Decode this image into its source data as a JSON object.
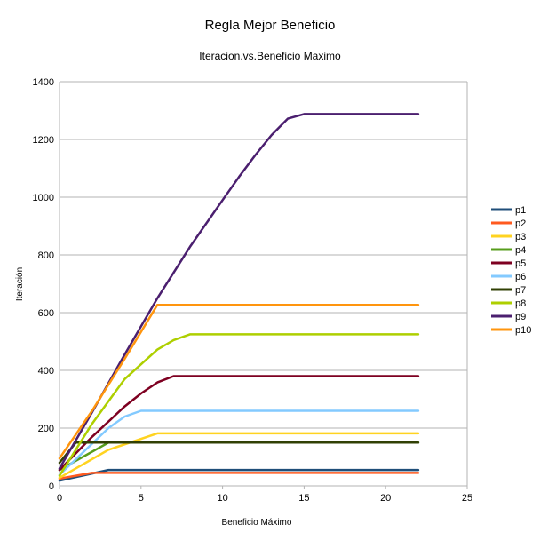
{
  "chart_data": {
    "type": "line",
    "title": "Regla Mejor Beneficio",
    "subtitle": "Iteracion.vs.Beneficio Maximo",
    "xlabel": "Beneficio Máximo",
    "ylabel": "Iteración",
    "xlim": [
      0,
      25
    ],
    "ylim": [
      0,
      1400
    ],
    "xticks": [
      "0",
      "5",
      "10",
      "15",
      "20",
      "25"
    ],
    "yticks": [
      "0",
      "200",
      "400",
      "600",
      "800",
      "1000",
      "1200",
      "1400"
    ],
    "grid": "horizontal",
    "legend": "right",
    "series": [
      {
        "name": "p1",
        "color": "#1f4e79",
        "x": [
          0,
          3,
          22
        ],
        "y": [
          18,
          55,
          55
        ]
      },
      {
        "name": "p2",
        "color": "#ff5a1f",
        "x": [
          0,
          2,
          22
        ],
        "y": [
          25,
          45,
          45
        ]
      },
      {
        "name": "p3",
        "color": "#ffd320",
        "x": [
          0,
          3,
          6,
          22
        ],
        "y": [
          28,
          125,
          182,
          182
        ]
      },
      {
        "name": "p4",
        "color": "#579d1c",
        "x": [
          0,
          3,
          22
        ],
        "y": [
          55,
          150,
          150
        ]
      },
      {
        "name": "p5",
        "color": "#7e0021",
        "x": [
          0,
          2,
          4,
          5,
          6,
          7,
          22
        ],
        "y": [
          55,
          170,
          275,
          320,
          358,
          380,
          380
        ]
      },
      {
        "name": "p6",
        "color": "#83caff",
        "x": [
          0,
          3,
          4,
          5,
          22
        ],
        "y": [
          38,
          200,
          240,
          260,
          260
        ]
      },
      {
        "name": "p7",
        "color": "#314004",
        "x": [
          0,
          1,
          22
        ],
        "y": [
          80,
          150,
          150
        ]
      },
      {
        "name": "p8",
        "color": "#aecf00",
        "x": [
          0,
          2,
          4,
          6,
          7,
          8,
          22
        ],
        "y": [
          35,
          215,
          370,
          472,
          505,
          525,
          525
        ]
      },
      {
        "name": "p9",
        "color": "#4b1f6f",
        "x": [
          0,
          2,
          4,
          6,
          8,
          10,
          11,
          12,
          13,
          14,
          15,
          22
        ],
        "y": [
          60,
          255,
          455,
          650,
          828,
          990,
          1070,
          1145,
          1215,
          1272,
          1288,
          1288
        ]
      },
      {
        "name": "p10",
        "color": "#ff950e",
        "x": [
          0,
          2,
          4,
          6,
          22
        ],
        "y": [
          95,
          260,
          440,
          627,
          627
        ]
      }
    ]
  }
}
